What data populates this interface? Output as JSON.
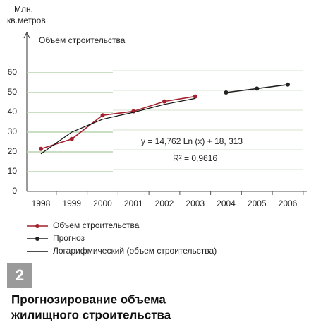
{
  "chart_data": {
    "type": "line",
    "y_label": [
      "Млн.",
      "кв.метров"
    ],
    "title": "Объем строительства",
    "categories": [
      "1998",
      "1999",
      "2000",
      "2001",
      "2002",
      "2003",
      "2004",
      "2005",
      "2006"
    ],
    "series": [
      {
        "name": "Объем строительства",
        "color": "#a3202c",
        "marker": true,
        "values": [
          21.5,
          26.5,
          38.5,
          40.5,
          45.5,
          48,
          null,
          null,
          null
        ]
      },
      {
        "name": "Прогноз",
        "color": "#222222",
        "marker": true,
        "values": [
          null,
          null,
          null,
          null,
          null,
          null,
          50,
          52,
          54
        ]
      },
      {
        "name": "Логарифмический (объем строительства)",
        "color": "#111111",
        "marker": false,
        "values": [
          19,
          30,
          36.5,
          40,
          44,
          47,
          null,
          null,
          null
        ]
      }
    ],
    "ylim": [
      0,
      60
    ],
    "yticks": [
      0,
      10,
      20,
      30,
      40,
      50,
      60
    ],
    "grid": true,
    "annotations": [
      "y = 14,762 Ln (x) + 18, 313",
      "R² = 0,9616"
    ],
    "badge": "2",
    "caption": [
      "Прогнозирование объема",
      "жилищного строительства"
    ]
  }
}
